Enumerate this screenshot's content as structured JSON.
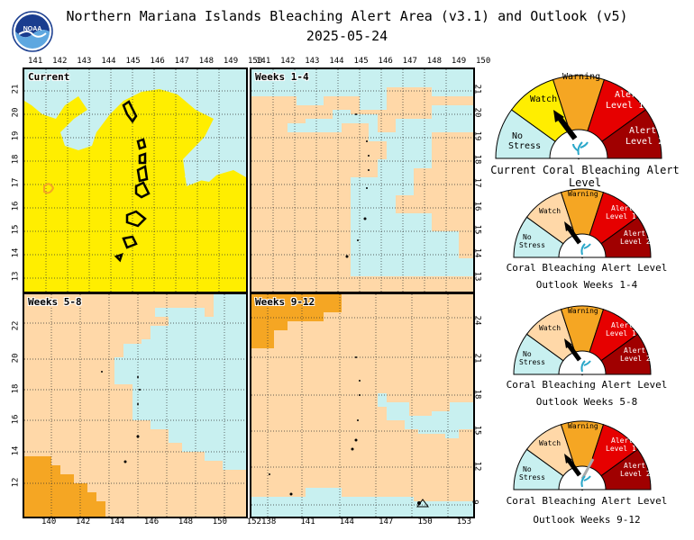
{
  "header": {
    "title": "Northern Mariana Islands Bleaching Alert Area (v3.1) and Outlook (v5)",
    "date": "2025-05-24"
  },
  "colors": {
    "no_stress": "#c8f0f0",
    "watch": "#ffee00",
    "warning": "#f5a623",
    "alert1": "#e60000",
    "alert2": "#a00000",
    "outlook_watch": "#ffd8a8"
  },
  "panels": {
    "current": {
      "label": "Current",
      "top_ticks": [
        "141",
        "142",
        "143",
        "144",
        "145",
        "146",
        "147",
        "148",
        "149",
        "150"
      ],
      "left_ticks": [
        "21",
        "20",
        "19",
        "18",
        "17",
        "16",
        "15",
        "14",
        "13"
      ]
    },
    "w1_4": {
      "label": "Weeks 1-4",
      "top_ticks": [
        "141",
        "142",
        "143",
        "144",
        "145",
        "146",
        "147",
        "148",
        "149",
        "150"
      ],
      "right_ticks": [
        "21",
        "20",
        "19",
        "18",
        "17",
        "16",
        "15",
        "14",
        "13"
      ]
    },
    "w5_8": {
      "label": "Weeks 5-8",
      "bottom_ticks": [
        "140",
        "142",
        "144",
        "146",
        "148",
        "150",
        "152"
      ],
      "left_ticks": [
        "22",
        "20",
        "18",
        "16",
        "14",
        "12"
      ]
    },
    "w9_12": {
      "label": "Weeks 9-12",
      "bottom_ticks": [
        "138",
        "141",
        "144",
        "147",
        "150",
        "153"
      ],
      "right_ticks": [
        "24",
        "21",
        "18",
        "15",
        "12",
        "9"
      ]
    }
  },
  "gauges": {
    "labels": {
      "no_stress": "No Stress",
      "watch": "Watch",
      "warning": "Warning",
      "alert1": "Alert Level 1",
      "alert2": "Alert Level 2"
    },
    "current_caption": "Current Coral Bleaching Alert Level",
    "outlook_caption": "Coral Bleaching Alert Level",
    "outlook_1_4": "Outlook Weeks 1-4",
    "outlook_5_8": "Outlook Weeks 5-8",
    "outlook_9_12": "Outlook Weeks 9-12",
    "current_level": "Watch",
    "outlook_1_4_level": "Watch",
    "outlook_5_8_level": "Watch",
    "outlook_9_12_level": "Watch"
  }
}
